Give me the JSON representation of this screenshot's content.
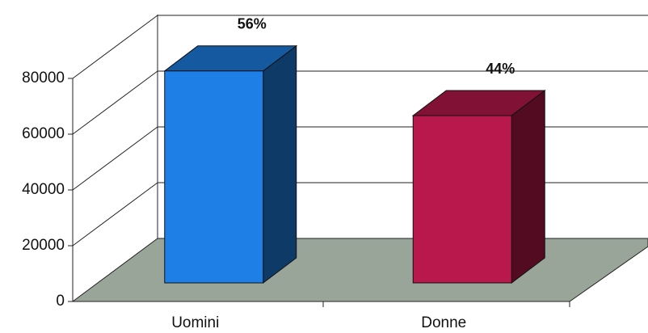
{
  "chart_data": {
    "type": "bar3d",
    "categories": [
      "Uomini",
      "Donne"
    ],
    "values": [
      76000,
      60000
    ],
    "colors": [
      "#1e80e6",
      "#b8184c"
    ],
    "annotations": [
      "56%",
      "44%"
    ],
    "ylim": [
      0,
      80000
    ],
    "yticks": [
      0,
      20000,
      40000,
      60000,
      80000
    ],
    "grid": true
  }
}
